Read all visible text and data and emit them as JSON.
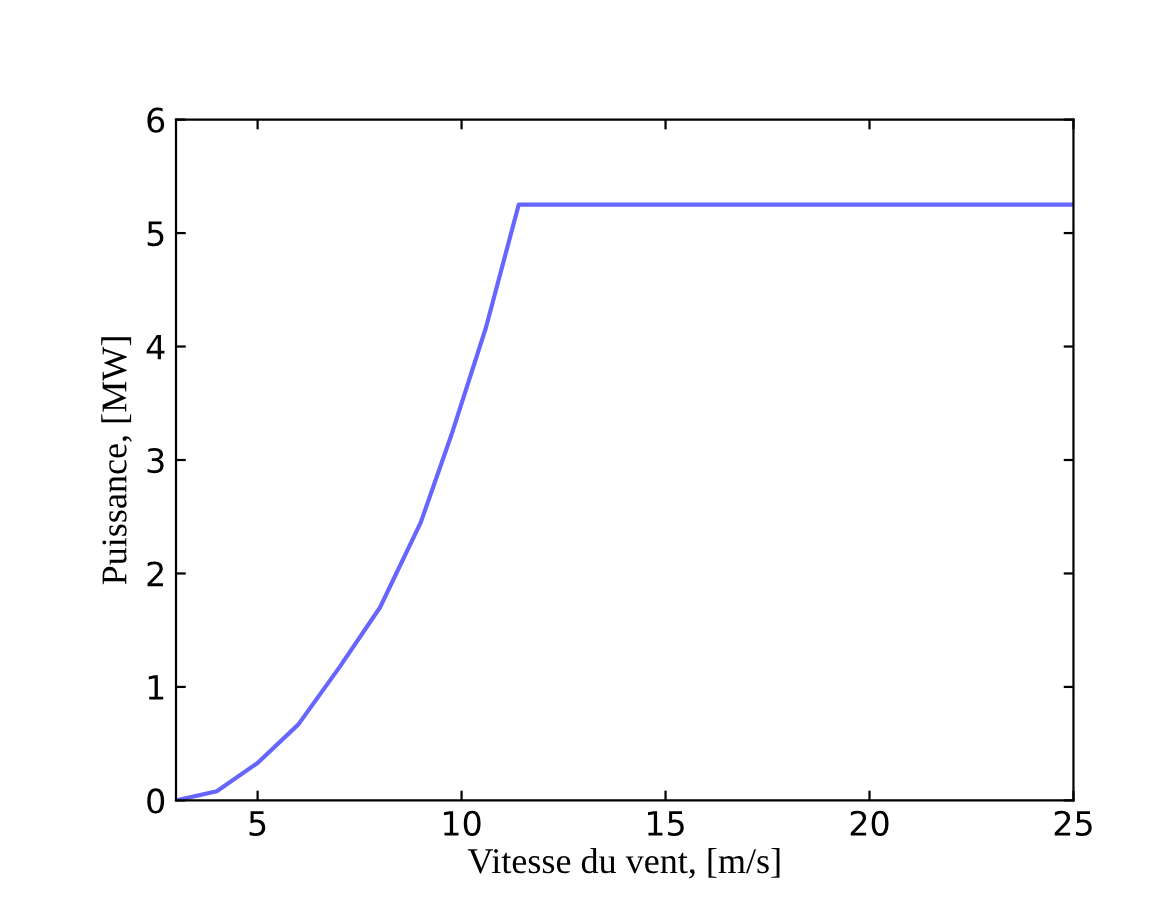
{
  "chart_data": {
    "type": "line",
    "xlabel": "Vitesse du vent, [m/s]",
    "ylabel": "Puissance, [MW]",
    "x": [
      3,
      4,
      5,
      6,
      7,
      8,
      9,
      9.75,
      10.6,
      11.4,
      25
    ],
    "series": [
      {
        "color": "#6666ff",
        "values": [
          0,
          0.08,
          0.33,
          0.67,
          1.17,
          1.7,
          2.45,
          3.22,
          4.17,
          5.25,
          5.25
        ]
      }
    ],
    "xlim": [
      3,
      25
    ],
    "xticks": [
      5,
      10,
      15,
      20,
      25
    ],
    "ylim": [
      0,
      6
    ],
    "yticks": [
      0,
      1,
      2,
      3,
      4,
      5,
      6
    ],
    "grid": false,
    "legend": false,
    "marker": "none",
    "line_style": "solid"
  }
}
